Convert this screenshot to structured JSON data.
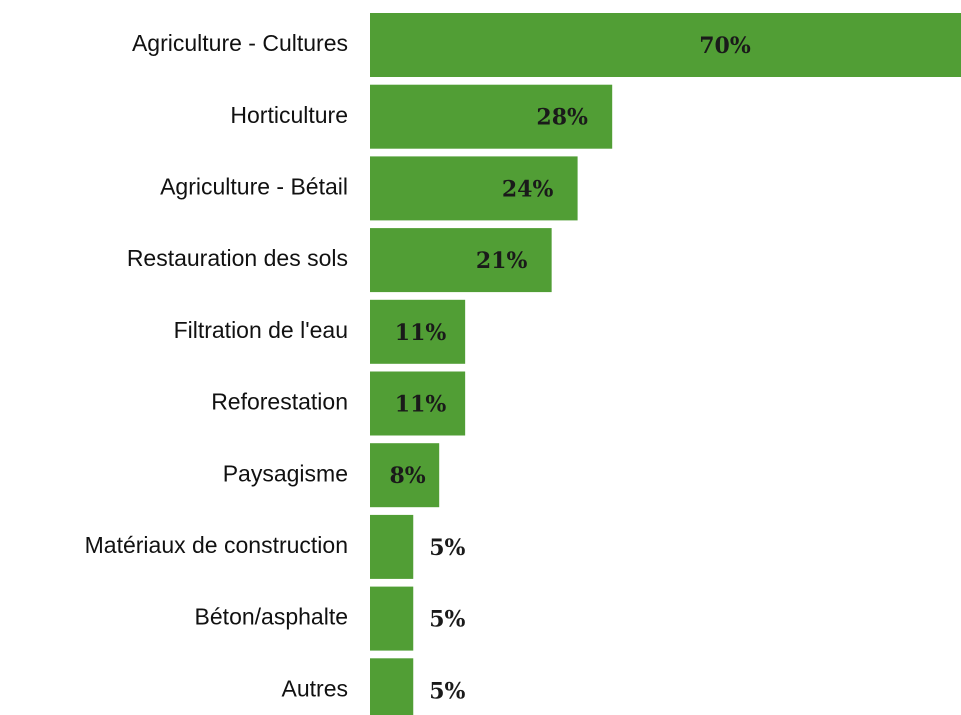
{
  "chart_data": {
    "type": "barh",
    "categories": [
      "Agriculture - Cultures",
      "Horticulture",
      "Agriculture - Bétail",
      "Restauration des sols",
      "Filtration de l'eau",
      "Reforestation",
      "Paysagisme",
      "Matériaux de construction",
      "Béton/asphalte",
      "Autres"
    ],
    "values": [
      70,
      28,
      24,
      21,
      11,
      11,
      8,
      5,
      5,
      5
    ],
    "value_labels": [
      "70%",
      "28%",
      "24%",
      "21%",
      "11%",
      "11%",
      "8%",
      "5%",
      "5%",
      "5%"
    ],
    "color": "#519e35"
  }
}
